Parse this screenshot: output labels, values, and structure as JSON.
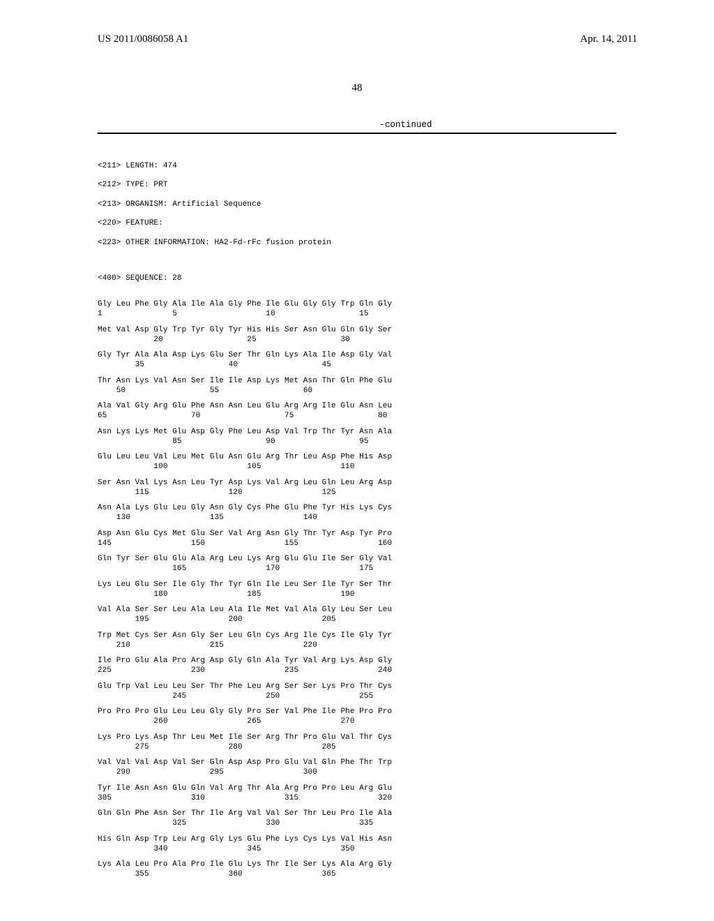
{
  "header": {
    "publication_number": "US 2011/0086058 A1",
    "publication_date": "Apr. 14, 2011",
    "page_number": "48",
    "continued_label": "-continued"
  },
  "sequence_header": {
    "length_label": "<211> LENGTH: 474",
    "type_label": "<212> TYPE: PRT",
    "organism_label": "<213> ORGANISM: Artificial Sequence",
    "feature_label": "<220> FEATURE:",
    "other_info_label": "<223> OTHER INFORMATION: HA2-Fd-rFc fusion protein",
    "sequence_id_label": "<400> SEQUENCE: 28"
  },
  "sequence_rows": [
    {
      "aa": "Gly Leu Phe Gly Ala Ile Ala Gly Phe Ile Glu Gly Gly Trp Gln Gly",
      "nums": "1               5                   10                  15"
    },
    {
      "aa": "Met Val Asp Gly Trp Tyr Gly Tyr His His Ser Asn Glu Gln Gly Ser",
      "nums": "            20                  25                  30"
    },
    {
      "aa": "Gly Tyr Ala Ala Asp Lys Glu Ser Thr Gln Lys Ala Ile Asp Gly Val",
      "nums": "        35                  40                  45"
    },
    {
      "aa": "Thr Asn Lys Val Asn Ser Ile Ile Asp Lys Met Asn Thr Gln Phe Glu",
      "nums": "    50                  55                  60"
    },
    {
      "aa": "Ala Val Gly Arg Glu Phe Asn Asn Leu Glu Arg Arg Ile Glu Asn Leu",
      "nums": "65                  70                  75                  80"
    },
    {
      "aa": "Asn Lys Lys Met Glu Asp Gly Phe Leu Asp Val Trp Thr Tyr Asn Ala",
      "nums": "                85                  90                  95"
    },
    {
      "aa": "Glu Leu Leu Val Leu Met Glu Asn Glu Arg Thr Leu Asp Phe His Asp",
      "nums": "            100                 105                 110"
    },
    {
      "aa": "Ser Asn Val Lys Asn Leu Tyr Asp Lys Val Arg Leu Gln Leu Arg Asp",
      "nums": "        115                 120                 125"
    },
    {
      "aa": "Asn Ala Lys Glu Leu Gly Asn Gly Cys Phe Glu Phe Tyr His Lys Cys",
      "nums": "    130                 135                 140"
    },
    {
      "aa": "Asp Asn Glu Cys Met Glu Ser Val Arg Asn Gly Thr Tyr Asp Tyr Pro",
      "nums": "145                 150                 155                 160"
    },
    {
      "aa": "Gln Tyr Ser Glu Glu Ala Arg Leu Lys Arg Glu Glu Ile Ser Gly Val",
      "nums": "                165                 170                 175"
    },
    {
      "aa": "Lys Leu Glu Ser Ile Gly Thr Tyr Gln Ile Leu Ser Ile Tyr Ser Thr",
      "nums": "            180                 185                 190"
    },
    {
      "aa": "Val Ala Ser Ser Leu Ala Leu Ala Ile Met Val Ala Gly Leu Ser Leu",
      "nums": "        195                 200                 205"
    },
    {
      "aa": "Trp Met Cys Ser Asn Gly Ser Leu Gln Cys Arg Ile Cys Ile Gly Tyr",
      "nums": "    210                 215                 220"
    },
    {
      "aa": "Ile Pro Glu Ala Pro Arg Asp Gly Gln Ala Tyr Val Arg Lys Asp Gly",
      "nums": "225                 230                 235                 240"
    },
    {
      "aa": "Glu Trp Val Leu Leu Ser Thr Phe Leu Arg Ser Ser Lys Pro Thr Cys",
      "nums": "                245                 250                 255"
    },
    {
      "aa": "Pro Pro Pro Glu Leu Leu Gly Gly Pro Ser Val Phe Ile Phe Pro Pro",
      "nums": "            260                 265                 270"
    },
    {
      "aa": "Lys Pro Lys Asp Thr Leu Met Ile Ser Arg Thr Pro Glu Val Thr Cys",
      "nums": "        275                 280                 285"
    },
    {
      "aa": "Val Val Val Asp Val Ser Gln Asp Asp Pro Glu Val Gln Phe Thr Trp",
      "nums": "    290                 295                 300"
    },
    {
      "aa": "Tyr Ile Asn Asn Glu Gln Val Arg Thr Ala Arg Pro Pro Leu Arg Glu",
      "nums": "305                 310                 315                 320"
    },
    {
      "aa": "Gln Gln Phe Asn Ser Thr Ile Arg Val Val Ser Thr Leu Pro Ile Ala",
      "nums": "                325                 330                 335"
    },
    {
      "aa": "His Gln Asp Trp Leu Arg Gly Lys Glu Phe Lys Cys Lys Val His Asn",
      "nums": "            340                 345                 350"
    },
    {
      "aa": "Lys Ala Leu Pro Ala Pro Ile Glu Lys Thr Ile Ser Lys Ala Arg Gly",
      "nums": "        355                 360                 365"
    }
  ]
}
